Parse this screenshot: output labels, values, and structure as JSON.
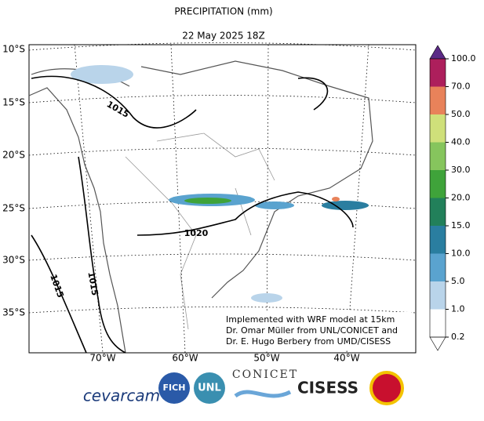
{
  "header": {
    "title": "PRECIPITATION (mm)",
    "date": "22 May 2025 18Z"
  },
  "lat_labels": [
    "10°S",
    "15°S",
    "20°S",
    "25°S",
    "30°S",
    "35°S"
  ],
  "lon_labels": [
    "70°W",
    "60°W",
    "50°W",
    "40°W"
  ],
  "contour_labels": [
    "1015",
    "1020",
    "1015",
    "1015"
  ],
  "colorbar": {
    "ticks": [
      "100.0",
      "70.0",
      "50.0",
      "40.0",
      "30.0",
      "20.0",
      "15.0",
      "10.0",
      "5.0",
      "1.0",
      "0.2"
    ],
    "colors": [
      "#5b2a86",
      "#ad1f5c",
      "#e8825a",
      "#cfe07a",
      "#86c55d",
      "#3fa33a",
      "#22805a",
      "#2a7ea0",
      "#5aa3cf",
      "#b9d4ea",
      "#ffffff",
      "#ffffff"
    ]
  },
  "note": [
    "Implemented with WRF model at 15km",
    "Dr. Omar Müller from UNL/CONICET and",
    "Dr. E. Hugo Berbery from UMD/CISESS"
  ],
  "logos": [
    "cevarcam",
    "FICH",
    "UNL",
    "CONICET",
    "CISESS"
  ]
}
